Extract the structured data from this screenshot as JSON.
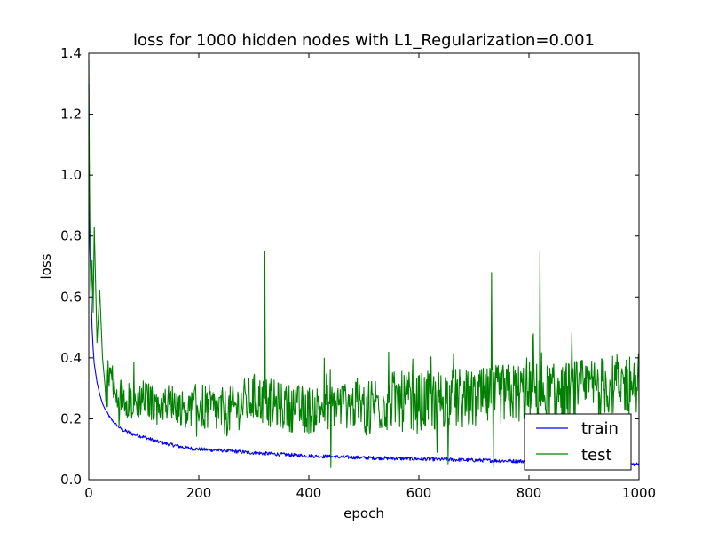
{
  "chart_data": {
    "type": "line",
    "title": "loss for 1000 hidden nodes with L1_Regularization=0.001",
    "xlabel": "epoch",
    "ylabel": "loss",
    "xlim": [
      0,
      1000
    ],
    "ylim": [
      0.0,
      1.4
    ],
    "xticks": [
      0,
      200,
      400,
      600,
      800,
      1000
    ],
    "xtick_labels": [
      "0",
      "200",
      "400",
      "600",
      "800",
      "1000"
    ],
    "yticks": [
      0.0,
      0.2,
      0.4,
      0.6,
      0.8,
      1.0,
      1.2,
      1.4
    ],
    "ytick_labels": [
      "0.0",
      "0.2",
      "0.4",
      "0.6",
      "0.8",
      "1.0",
      "1.2",
      "1.4"
    ],
    "legend_position": "lower right",
    "grid": false,
    "x": [
      0,
      1,
      2,
      4,
      6,
      8,
      10,
      15,
      20,
      25,
      30,
      40,
      50,
      60,
      80,
      100,
      125,
      150,
      175,
      200,
      250,
      300,
      350,
      400,
      450,
      500,
      550,
      600,
      650,
      700,
      750,
      800,
      850,
      900,
      950,
      1000
    ],
    "series": [
      {
        "name": "train",
        "color": "#0000ff",
        "values": [
          1.3,
          0.88,
          0.76,
          0.62,
          0.5,
          0.43,
          0.38,
          0.32,
          0.28,
          0.25,
          0.23,
          0.2,
          0.18,
          0.165,
          0.15,
          0.14,
          0.125,
          0.115,
          0.105,
          0.1,
          0.095,
          0.088,
          0.083,
          0.078,
          0.075,
          0.072,
          0.07,
          0.068,
          0.066,
          0.064,
          0.062,
          0.06,
          0.057,
          0.055,
          0.053,
          0.05
        ]
      },
      {
        "name": "test",
        "color": "#008000",
        "values": [
          1.38,
          1.05,
          0.85,
          0.6,
          0.72,
          0.55,
          0.83,
          0.45,
          0.62,
          0.4,
          0.3,
          0.35,
          0.26,
          0.28,
          0.25,
          0.27,
          0.24,
          0.26,
          0.23,
          0.24,
          0.22,
          0.27,
          0.24,
          0.23,
          0.25,
          0.24,
          0.26,
          0.25,
          0.27,
          0.26,
          0.28,
          0.29,
          0.28,
          0.3,
          0.31,
          0.32
        ]
      }
    ],
    "notable_points": {
      "train": [],
      "test": [
        {
          "x": 320,
          "y": 0.75
        },
        {
          "x": 732,
          "y": 0.68
        },
        {
          "x": 820,
          "y": 0.75
        },
        {
          "x": 440,
          "y": 0.04
        },
        {
          "x": 735,
          "y": 0.04
        }
      ]
    },
    "test_fluctuation_half_range": [
      {
        "x_from": 40,
        "x_to": 200,
        "amplitude": 0.06
      },
      {
        "x_from": 200,
        "x_to": 500,
        "amplitude": 0.08
      },
      {
        "x_from": 500,
        "x_to": 1000,
        "amplitude": 0.1
      }
    ]
  }
}
